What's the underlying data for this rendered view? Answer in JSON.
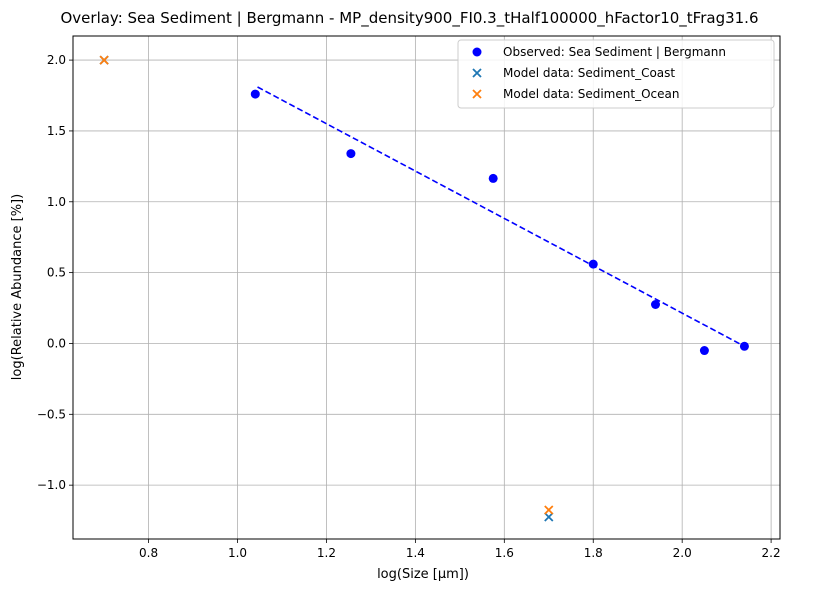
{
  "chart_data": {
    "type": "scatter",
    "title": "Overlay: Sea Sediment | Bergmann - MP_density900_FI0.3_tHalf100000_hFactor10_tFrag31.6",
    "xlabel": "log(Size [µm])",
    "ylabel": "log(Relative Abundance [%])",
    "xlim": [
      0.63,
      2.22
    ],
    "ylim": [
      -1.38,
      2.17
    ],
    "x_ticks": [
      "0.8",
      "1.0",
      "1.2",
      "1.4",
      "1.6",
      "1.8",
      "2.0",
      "2.2"
    ],
    "x_tick_values": [
      0.8,
      1.0,
      1.2,
      1.4,
      1.6,
      1.8,
      2.0,
      2.2
    ],
    "y_ticks": [
      "−1.0",
      "−0.5",
      "0.0",
      "0.5",
      "1.0",
      "1.5",
      "2.0"
    ],
    "y_tick_values": [
      -1.0,
      -0.5,
      0.0,
      0.5,
      1.0,
      1.5,
      2.0
    ],
    "grid": true,
    "legend_position": "top-right",
    "series": [
      {
        "name": "Observed: Sea Sediment | Bergmann",
        "marker": "circle",
        "color": "#0000ff",
        "points": [
          {
            "x": 1.04,
            "y": 1.76
          },
          {
            "x": 1.255,
            "y": 1.34
          },
          {
            "x": 1.575,
            "y": 1.165
          },
          {
            "x": 1.8,
            "y": 0.56
          },
          {
            "x": 1.94,
            "y": 0.275
          },
          {
            "x": 2.05,
            "y": -0.05
          },
          {
            "x": 2.14,
            "y": -0.02
          }
        ]
      },
      {
        "name": "Model data: Sediment_Coast",
        "marker": "x",
        "color": "#1f77b4",
        "points": [
          {
            "x": 0.7,
            "y": 2.0
          },
          {
            "x": 1.7,
            "y": -1.225
          }
        ]
      },
      {
        "name": "Model data: Sediment_Ocean",
        "marker": "x",
        "color": "#ff7f0e",
        "points": [
          {
            "x": 0.7,
            "y": 2.0
          },
          {
            "x": 1.7,
            "y": -1.175
          }
        ]
      }
    ],
    "fit_line": {
      "style": "dashed",
      "color": "#0000ff",
      "x": [
        1.045,
        2.14
      ],
      "y": [
        1.81,
        -0.02
      ]
    }
  }
}
